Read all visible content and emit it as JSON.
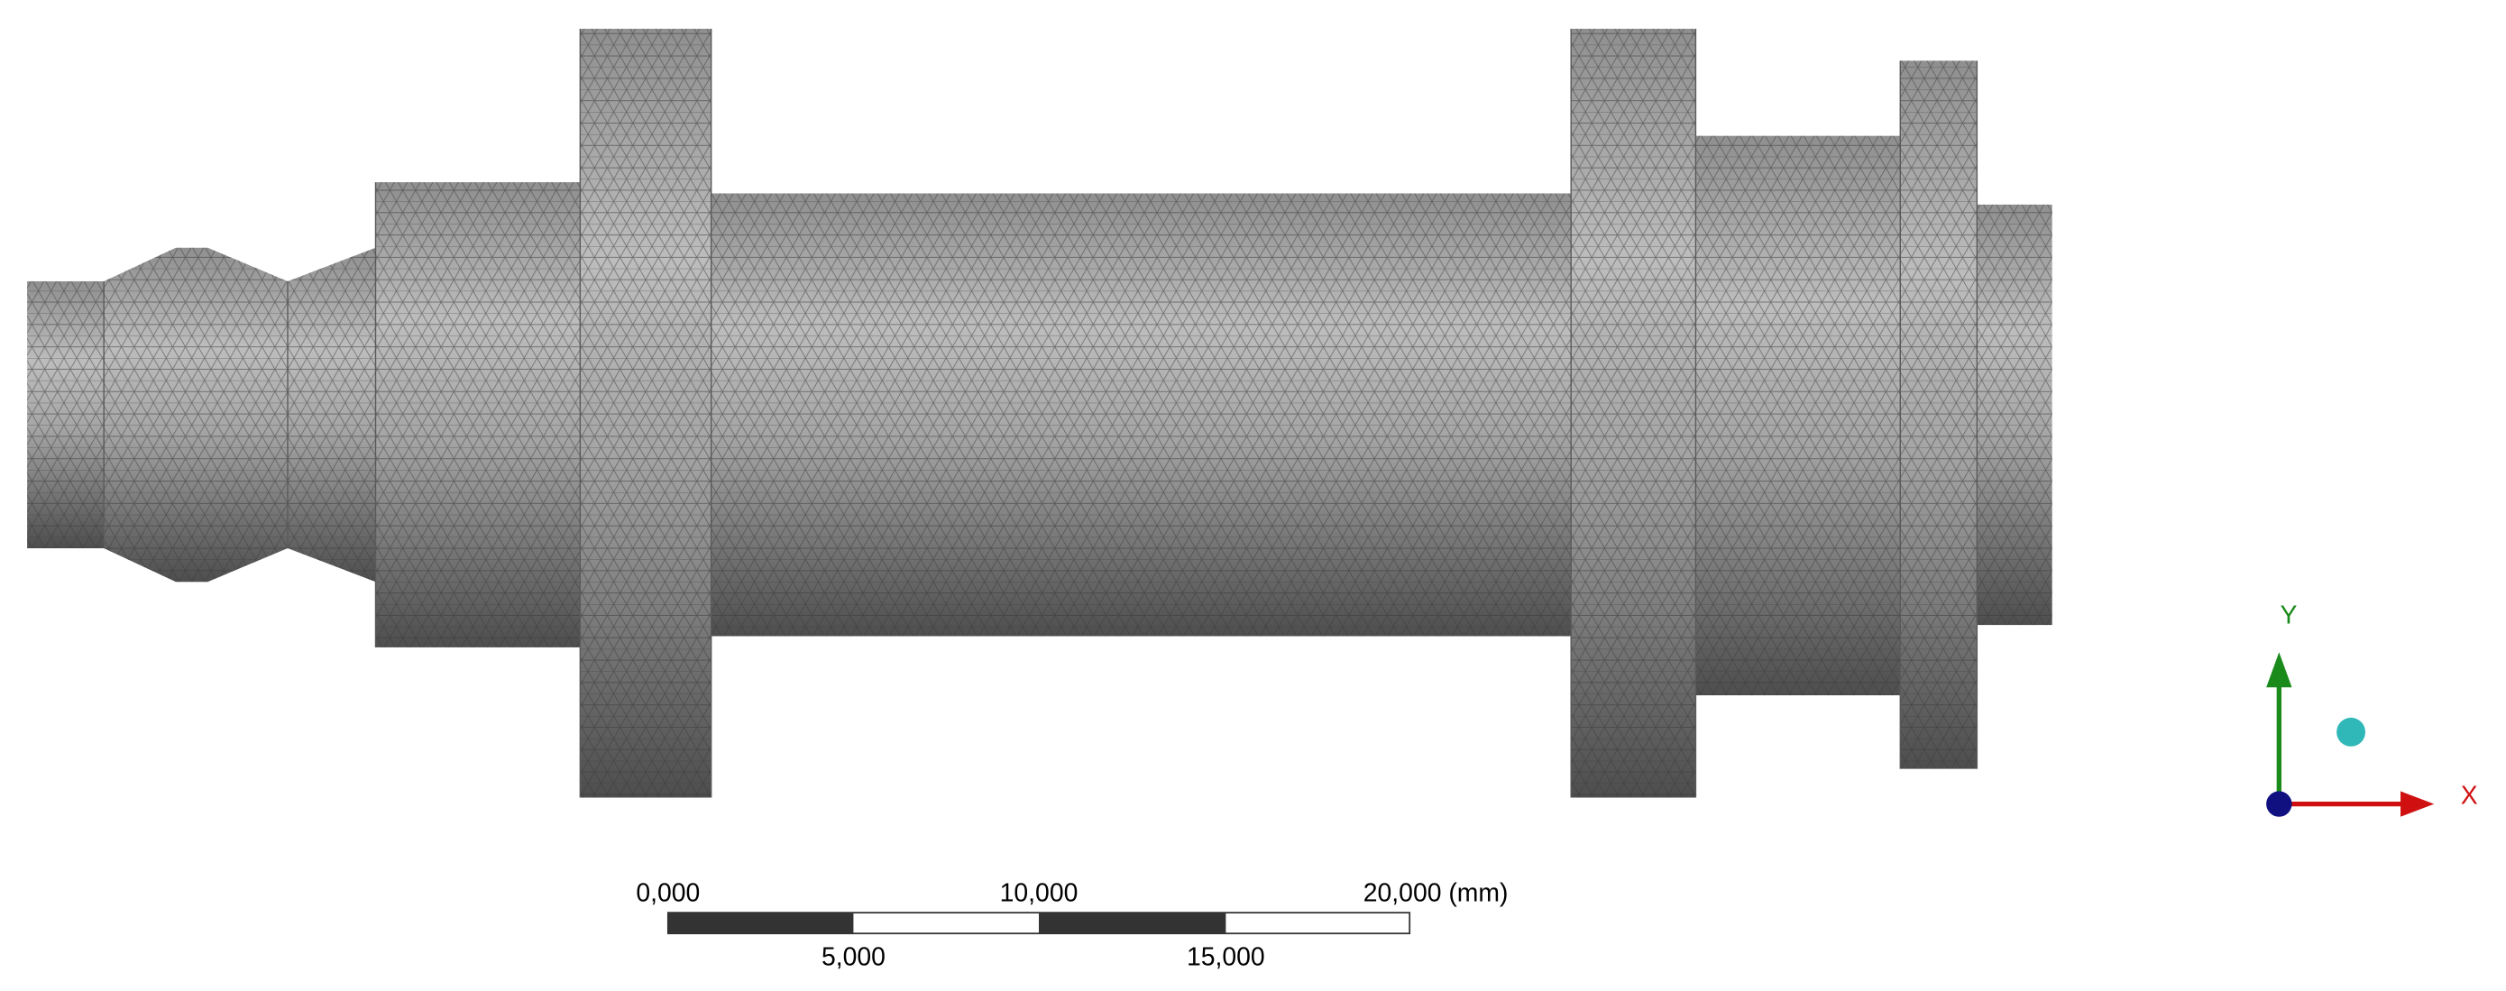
{
  "scale_bar": {
    "top_labels": [
      "0,000",
      "10,000",
      "20,000 (mm)"
    ],
    "bottom_labels": [
      "5,000",
      "15,000"
    ]
  },
  "triad": {
    "y_label": "Y",
    "x_label": "X"
  }
}
